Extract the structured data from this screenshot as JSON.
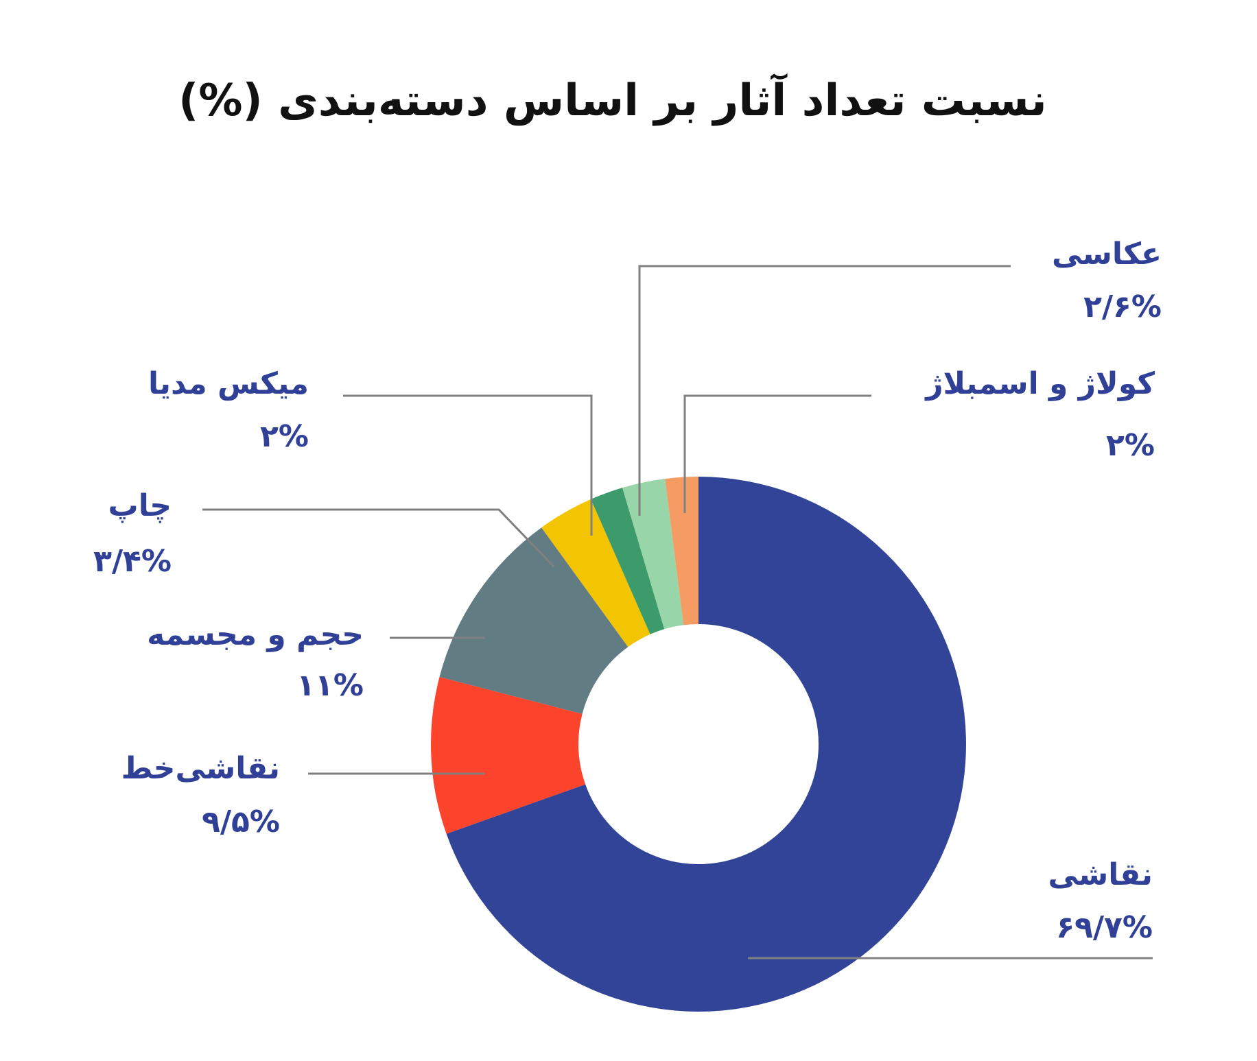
{
  "chart_data": {
    "type": "pie",
    "donut": true,
    "title": "نسبت تعداد آثار بر اساس دسته‌بندی (%)",
    "legend": "none",
    "slices": [
      {
        "label": "نقاشی",
        "value": 69.7,
        "value_label": "۶۹/۷%",
        "color": "#324497"
      },
      {
        "label": "نقاشی‌خط",
        "value": 9.5,
        "value_label": "۹/۵%",
        "color": "#fc432b"
      },
      {
        "label": "حجم و مجسمه",
        "value": 11,
        "value_label": "۱۱%",
        "color": "#627c83"
      },
      {
        "label": "چاپ",
        "value": 3.4,
        "value_label": "۳/۴%",
        "color": "#f3c401"
      },
      {
        "label": "میکس مدیا",
        "value": 2,
        "value_label": "۲%",
        "color": "#3c9a6b"
      },
      {
        "label": "عکاسی",
        "value": 2.6,
        "value_label": "۲/۶%",
        "color": "#98d5a8"
      },
      {
        "label": "کولاژ و اسمبلاژ",
        "value": 2,
        "value_label": "۲%",
        "color": "#f59c64"
      }
    ]
  }
}
